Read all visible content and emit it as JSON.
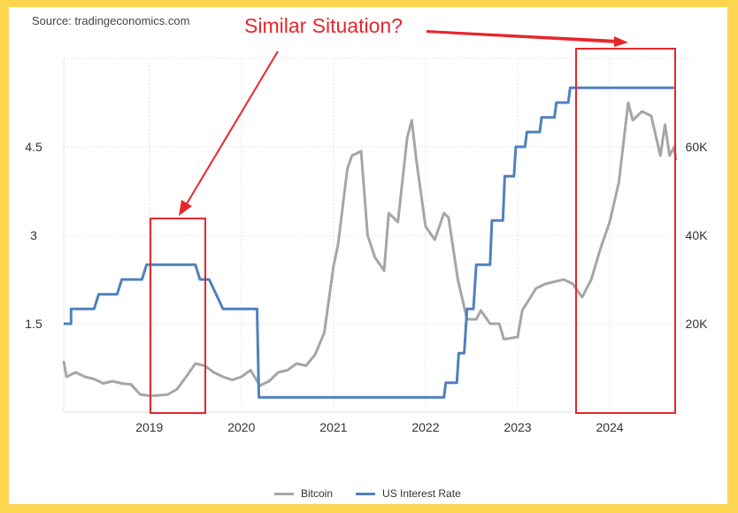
{
  "source": "Source: tradingeconomics.com",
  "annotation": "Similar Situation?",
  "colors": {
    "bitcoin": "#a6a6a6",
    "rate": "#4f81bd",
    "annotation": "#e8262b",
    "background": "#fdd54f"
  },
  "chart_data": {
    "type": "line",
    "xlabel": "",
    "ylabel_left": "",
    "ylabel_right": "",
    "x_ticks": [
      "2019",
      "2020",
      "2021",
      "2022",
      "2023",
      "2024"
    ],
    "y_left_ticks": [
      "1.5",
      "3",
      "4.5"
    ],
    "y_right_ticks": [
      "20K",
      "40K",
      "60K"
    ],
    "xlim": [
      2018.07,
      2024.73
    ],
    "ylim_left": [
      0,
      6
    ],
    "ylim_right": [
      0,
      80000
    ],
    "grid": true,
    "legend": "bottom",
    "series": [
      {
        "name": "Bitcoin",
        "axis": "right",
        "x": [
          2018.07,
          2018.1,
          2018.2,
          2018.3,
          2018.4,
          2018.5,
          2018.6,
          2018.7,
          2018.8,
          2018.9,
          2019.0,
          2019.1,
          2019.2,
          2019.3,
          2019.4,
          2019.5,
          2019.6,
          2019.7,
          2019.8,
          2019.9,
          2020.0,
          2020.1,
          2020.2,
          2020.3,
          2020.4,
          2020.5,
          2020.6,
          2020.7,
          2020.8,
          2020.9,
          2021.0,
          2021.05,
          2021.15,
          2021.2,
          2021.3,
          2021.37,
          2021.45,
          2021.55,
          2021.6,
          2021.7,
          2021.8,
          2021.85,
          2021.9,
          2022.0,
          2022.1,
          2022.2,
          2022.25,
          2022.35,
          2022.45,
          2022.55,
          2022.6,
          2022.7,
          2022.8,
          2022.85,
          2023.0,
          2023.05,
          2023.2,
          2023.3,
          2023.5,
          2023.6,
          2023.7,
          2023.8,
          2023.9,
          2024.0,
          2024.1,
          2024.2,
          2024.25,
          2024.35,
          2024.45,
          2024.55,
          2024.6,
          2024.65,
          2024.7,
          2024.72
        ],
        "values": [
          11600,
          8000,
          9000,
          8000,
          7500,
          6500,
          7000,
          6500,
          6300,
          4000,
          3700,
          3800,
          4000,
          5200,
          8000,
          11000,
          10500,
          9000,
          8000,
          7300,
          8000,
          9500,
          6000,
          7000,
          9000,
          9500,
          11000,
          10500,
          13000,
          18000,
          33000,
          38000,
          55000,
          58000,
          59000,
          40000,
          35000,
          32000,
          45000,
          43000,
          62000,
          66000,
          57000,
          42000,
          39000,
          45000,
          44000,
          30000,
          21000,
          21000,
          23000,
          20000,
          20000,
          16500,
          17000,
          23000,
          28000,
          29000,
          30000,
          29000,
          26000,
          30000,
          37000,
          43000,
          52000,
          70000,
          66000,
          68000,
          67000,
          58000,
          65000,
          58000,
          60000,
          57000
        ]
      },
      {
        "name": "US Interest Rate",
        "axis": "left",
        "x": [
          2018.07,
          2018.15,
          2018.15,
          2018.4,
          2018.45,
          2018.65,
          2018.7,
          2018.92,
          2018.97,
          2019.5,
          2019.55,
          2019.65,
          2019.8,
          2020.17,
          2020.19,
          2022.2,
          2022.22,
          2022.34,
          2022.36,
          2022.42,
          2022.45,
          2022.52,
          2022.55,
          2022.7,
          2022.72,
          2022.84,
          2022.86,
          2022.96,
          2022.98,
          2023.08,
          2023.1,
          2023.24,
          2023.26,
          2023.4,
          2023.42,
          2023.55,
          2023.57,
          2024.7
        ],
        "values": [
          1.5,
          1.5,
          1.75,
          1.75,
          2.0,
          2.0,
          2.25,
          2.25,
          2.5,
          2.5,
          2.25,
          2.25,
          1.75,
          1.75,
          0.25,
          0.25,
          0.5,
          0.5,
          1.0,
          1.0,
          1.75,
          1.75,
          2.5,
          2.5,
          3.25,
          3.25,
          4.0,
          4.0,
          4.5,
          4.5,
          4.75,
          4.75,
          5.0,
          5.0,
          5.25,
          5.25,
          5.5,
          5.5
        ]
      }
    ]
  }
}
